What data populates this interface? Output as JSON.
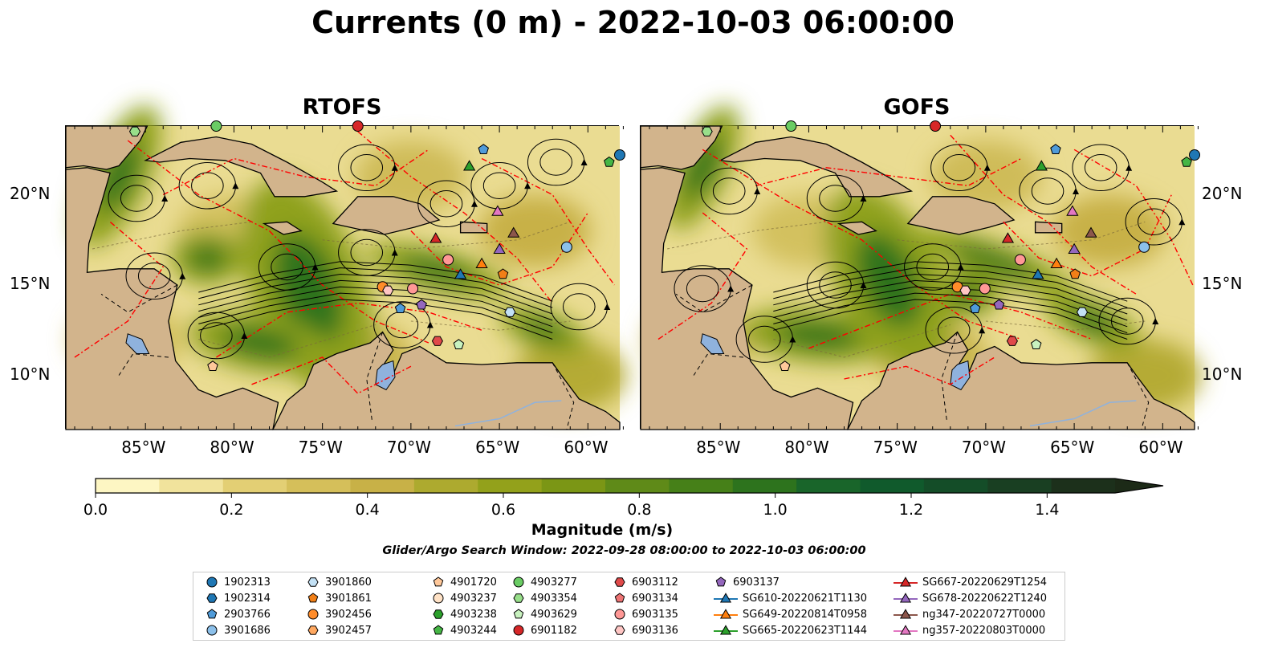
{
  "title": "Currents (0 m) - 2022-10-03 06:00:00",
  "panels": [
    {
      "title": "RTOFS"
    },
    {
      "title": "GOFS"
    }
  ],
  "axes": {
    "x_ticks": [
      "85°W",
      "80°W",
      "75°W",
      "70°W",
      "65°W",
      "60°W"
    ],
    "x_values": [
      -85,
      -80,
      -75,
      -70,
      -65,
      -60
    ],
    "y_ticks": [
      "20°N",
      "15°N",
      "10°N"
    ],
    "y_values": [
      20,
      15,
      10
    ],
    "lon_range": [
      -89.5,
      -58.2
    ],
    "lat_range": [
      7.0,
      23.8
    ]
  },
  "colorbar": {
    "label": "Magnitude (m/s)",
    "ticks": [
      "0.0",
      "0.2",
      "0.4",
      "0.6",
      "0.8",
      "1.0",
      "1.2",
      "1.4"
    ],
    "tick_values": [
      0,
      0.2,
      0.4,
      0.6,
      0.8,
      1.0,
      1.2,
      1.4
    ],
    "range": [
      0,
      1.5
    ],
    "extend": "max",
    "colors": [
      "#fdf6c3",
      "#f1e39c",
      "#e3cf74",
      "#d5bf5a",
      "#c8b147",
      "#adaa2f",
      "#93a11b",
      "#7b9615",
      "#5f8a18",
      "#468018",
      "#2d731d",
      "#19652a",
      "#105a2c",
      "#144d28",
      "#193f22",
      "#1c301b"
    ]
  },
  "search_window": "Glider/Argo Search Window: 2022-09-28 08:00:00 to 2022-10-03 06:00:00",
  "legend": {
    "columns": [
      [
        {
          "label": "1902313",
          "marker": "circle",
          "color": "#1f77b4"
        },
        {
          "label": "1902314",
          "marker": "hexagon",
          "color": "#1f77b4"
        },
        {
          "label": "2903766",
          "marker": "pentagon",
          "color": "#4f9bd9"
        },
        {
          "label": "3901686",
          "marker": "circle",
          "color": "#8cc0ea"
        }
      ],
      [
        {
          "label": "3901860",
          "marker": "hexagon",
          "color": "#c3e1f5"
        },
        {
          "label": "3901861",
          "marker": "pentagon",
          "color": "#f17f17"
        },
        {
          "label": "3902456",
          "marker": "circle",
          "color": "#ff8c2a"
        },
        {
          "label": "3902457",
          "marker": "hexagon",
          "color": "#ffa860"
        }
      ],
      [
        {
          "label": "4901720",
          "marker": "pentagon",
          "color": "#ffc89a"
        },
        {
          "label": "4903237",
          "marker": "circle",
          "color": "#ffe2c6"
        },
        {
          "label": "4903238",
          "marker": "hexagon",
          "color": "#2ca02c"
        },
        {
          "label": "4903244",
          "marker": "pentagon",
          "color": "#45b645"
        }
      ],
      [
        {
          "label": "4903277",
          "marker": "circle",
          "color": "#6acc64"
        },
        {
          "label": "4903354",
          "marker": "hexagon",
          "color": "#98df8a"
        },
        {
          "label": "4903629",
          "marker": "pentagon",
          "color": "#c8f2bf"
        },
        {
          "label": "6901182",
          "marker": "circle",
          "color": "#d62728"
        }
      ],
      [
        {
          "label": "6903112",
          "marker": "hexagon",
          "color": "#e04a4a"
        },
        {
          "label": "6903134",
          "marker": "pentagon",
          "color": "#ee7474"
        },
        {
          "label": "6903135",
          "marker": "circle",
          "color": "#ff9896"
        },
        {
          "label": "6903136",
          "marker": "hexagon",
          "color": "#ffc6c4"
        }
      ],
      [
        {
          "label": "6903137",
          "marker": "pentagon",
          "color": "#9467bd"
        },
        {
          "label": "SG610-20220621T1130",
          "marker": "triangle",
          "color": "#1f77b4"
        },
        {
          "label": "SG649-20220814T0958",
          "marker": "triangle",
          "color": "#ff7f0e"
        },
        {
          "label": "SG665-20220623T1144",
          "marker": "triangle",
          "color": "#2ca02c"
        }
      ],
      [
        {
          "label": "SG667-20220629T1254",
          "marker": "triangle",
          "color": "#d62728"
        },
        {
          "label": "SG678-20220622T1240",
          "marker": "triangle",
          "color": "#9467bd"
        },
        {
          "label": "ng347-20220727T0000",
          "marker": "triangle",
          "color": "#8c564b"
        },
        {
          "label": "ng357-20220803T0000",
          "marker": "triangle",
          "color": "#e377c2"
        }
      ]
    ]
  },
  "land_color": "#d2b48c",
  "track_color": "#ff0000",
  "markers": [
    {
      "lon": -85.6,
      "lat": 23.5,
      "marker": "hexagon",
      "color": "#98df8a"
    },
    {
      "lon": -81.0,
      "lat": 23.8,
      "marker": "circle",
      "color": "#6acc64"
    },
    {
      "lon": -73.0,
      "lat": 23.8,
      "marker": "circle",
      "color": "#d62728"
    },
    {
      "lon": -65.9,
      "lat": 22.5,
      "marker": "pentagon",
      "color": "#4f9bd9"
    },
    {
      "lon": -58.2,
      "lat": 22.2,
      "marker": "circle",
      "color": "#1f77b4"
    },
    {
      "lon": -58.8,
      "lat": 21.8,
      "marker": "pentagon",
      "color": "#45b645"
    },
    {
      "lon": -66.7,
      "lat": 21.6,
      "marker": "triangle",
      "color": "#2ca02c"
    },
    {
      "lon": -65.1,
      "lat": 19.1,
      "marker": "triangle",
      "color": "#e377c2"
    },
    {
      "lon": -64.2,
      "lat": 17.9,
      "marker": "triangle",
      "color": "#8c564b"
    },
    {
      "lon": -68.6,
      "lat": 17.6,
      "marker": "triangle",
      "color": "#d62728"
    },
    {
      "lon": -65.0,
      "lat": 17.0,
      "marker": "triangle",
      "color": "#9467bd"
    },
    {
      "lon": -61.2,
      "lat": 17.1,
      "marker": "circle",
      "color": "#8cc0ea"
    },
    {
      "lon": -67.9,
      "lat": 16.4,
      "marker": "circle",
      "color": "#ff9896"
    },
    {
      "lon": -66.0,
      "lat": 16.2,
      "marker": "triangle",
      "color": "#ff7f0e"
    },
    {
      "lon": -67.2,
      "lat": 15.6,
      "marker": "triangle",
      "color": "#1f77b4"
    },
    {
      "lon": -64.8,
      "lat": 15.6,
      "marker": "pentagon",
      "color": "#f17f17"
    },
    {
      "lon": -71.6,
      "lat": 14.9,
      "marker": "circle",
      "color": "#ff8c2a"
    },
    {
      "lon": -71.3,
      "lat": 14.7,
      "marker": "hexagon",
      "color": "#ffc6c4"
    },
    {
      "lon": -69.9,
      "lat": 14.8,
      "marker": "circle",
      "color": "#ff9896"
    },
    {
      "lon": -70.6,
      "lat": 13.7,
      "marker": "pentagon",
      "color": "#4f9bd9"
    },
    {
      "lon": -69.4,
      "lat": 13.9,
      "marker": "pentagon",
      "color": "#9467bd"
    },
    {
      "lon": -64.4,
      "lat": 13.5,
      "marker": "hexagon",
      "color": "#c3e1f5"
    },
    {
      "lon": -68.5,
      "lat": 11.9,
      "marker": "hexagon",
      "color": "#e04a4a"
    },
    {
      "lon": -67.3,
      "lat": 11.7,
      "marker": "pentagon",
      "color": "#c8f2bf"
    },
    {
      "lon": -81.2,
      "lat": 10.5,
      "marker": "pentagon",
      "color": "#ffc89a"
    }
  ]
}
